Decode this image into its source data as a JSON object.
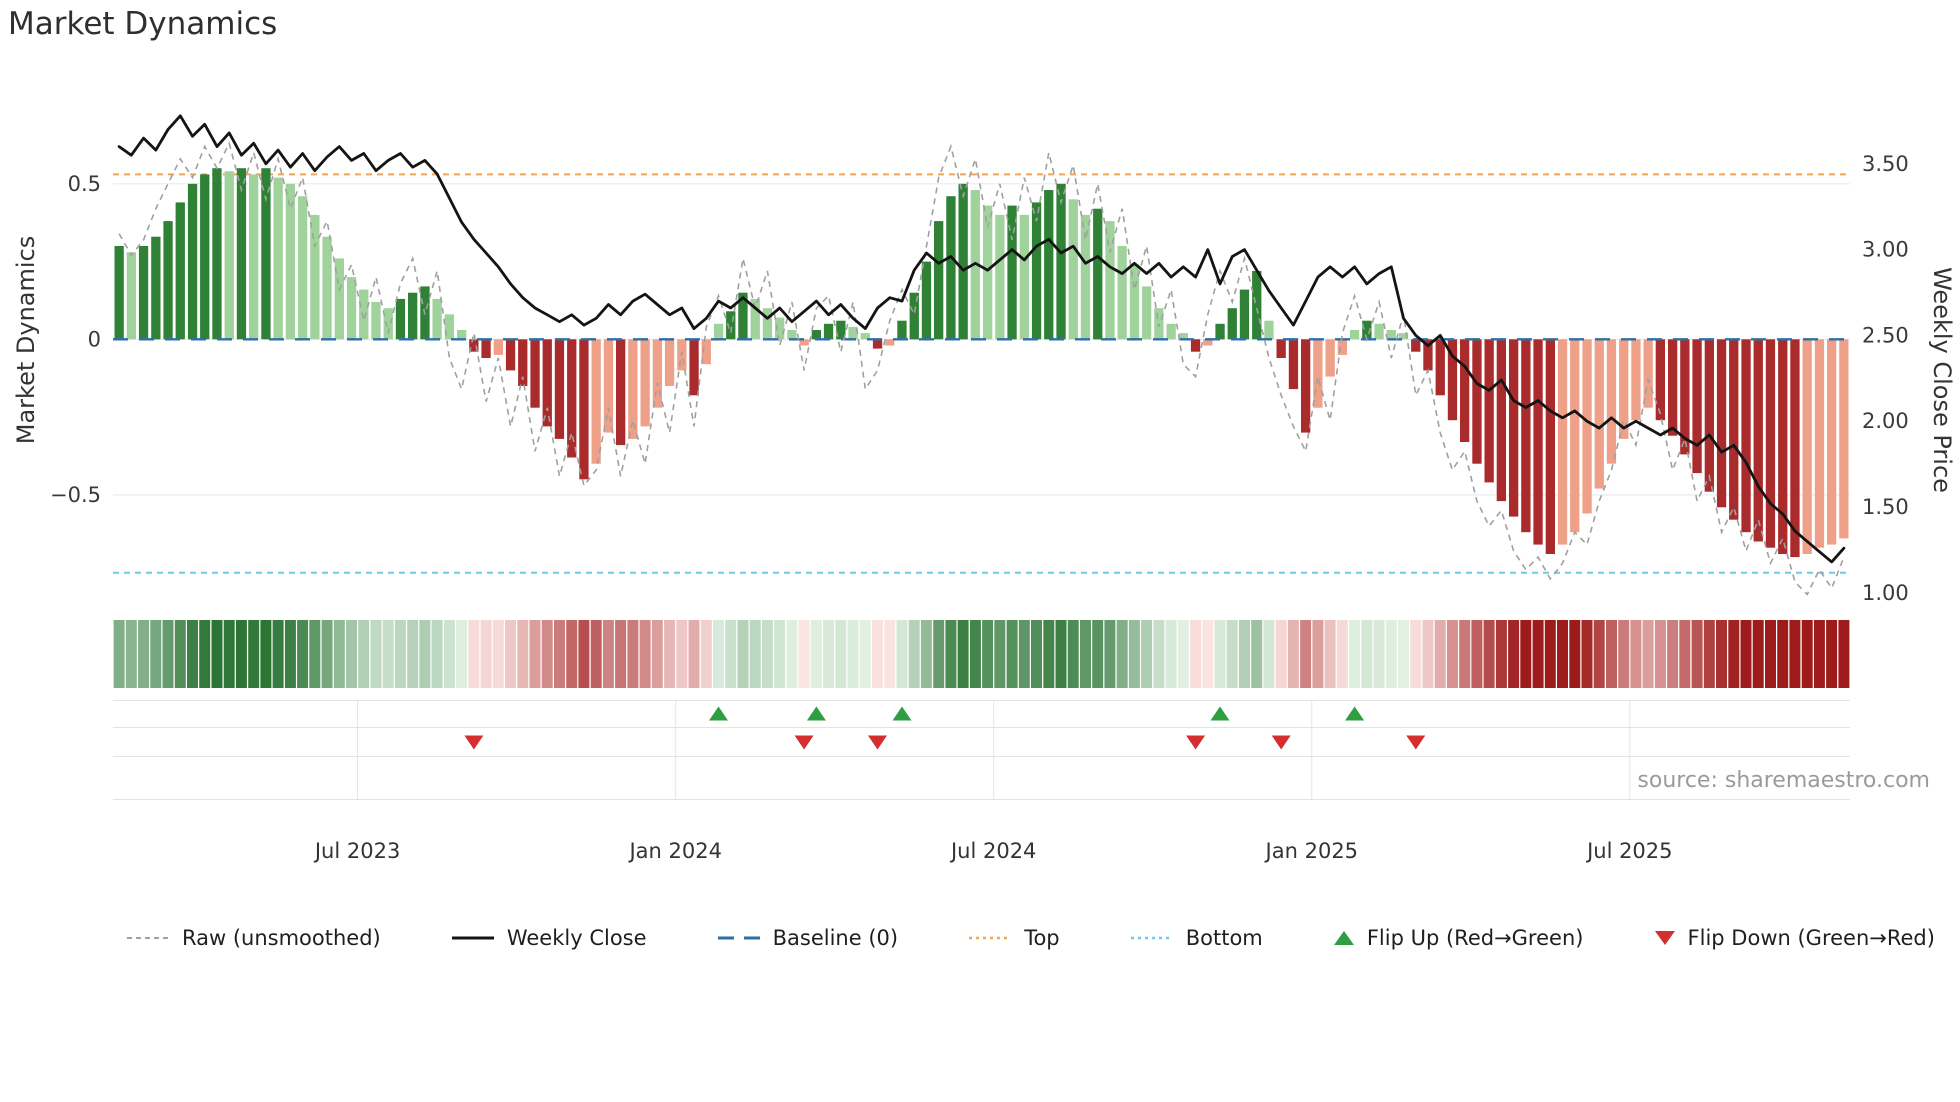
{
  "title": "Market Dynamics",
  "source_text": "source: sharemaestro.com",
  "axes": {
    "left_label": "Market Dynamics",
    "right_label": "Weekly Close Price",
    "left_ylim": [
      -0.87,
      0.84
    ],
    "right_ylim": [
      0.9,
      4.0
    ],
    "left_ticks": [
      {
        "value": 0.5,
        "label": "0.5"
      },
      {
        "value": 0.0,
        "label": "0"
      },
      {
        "value": -0.5,
        "label": "−0.5"
      }
    ],
    "right_ticks": [
      {
        "value": 3.5,
        "label": "3.50"
      },
      {
        "value": 3.0,
        "label": "3.00"
      },
      {
        "value": 2.5,
        "label": "2.50"
      },
      {
        "value": 2.0,
        "label": "2.00"
      },
      {
        "value": 1.5,
        "label": "1.50"
      },
      {
        "value": 1.0,
        "label": "1.00"
      }
    ],
    "x_ticks": [
      {
        "index": 20,
        "label": "Jul 2023"
      },
      {
        "index": 46,
        "label": "Jan 2024"
      },
      {
        "index": 72,
        "label": "Jul 2024"
      },
      {
        "index": 98,
        "label": "Jan 2025"
      },
      {
        "index": 124,
        "label": "Jul 2025"
      }
    ]
  },
  "colors": {
    "bar_green_dark": "#2e8135",
    "bar_green_light": "#a0d39b",
    "bar_red_dark": "#aa2b2b",
    "bar_red_light": "#efa088",
    "price_line": "#141414",
    "raw_line": "#a0a0a0",
    "baseline": "#2e6fa8",
    "top_line": "#f0a455",
    "bottom_line": "#6cc9e8",
    "flip_up": "#2f9e41",
    "flip_down": "#d32f2f",
    "grid": "#ebebeb",
    "band_grid": "#e4e4e4",
    "heat_green_dark": [
      27,
      105,
      37
    ],
    "heat_green_light": [
      232,
      245,
      233
    ],
    "heat_red_dark": [
      158,
      27,
      27
    ],
    "heat_red_light": [
      253,
      235,
      232
    ]
  },
  "legend": {
    "items": [
      {
        "label": "Raw (unsmoothed)",
        "icon": "dashed-line",
        "color": "#a0a0a0"
      },
      {
        "label": "Weekly Close",
        "icon": "solid-line",
        "color": "#141414"
      },
      {
        "label": "Baseline (0)",
        "icon": "long-dash-line",
        "color": "#2e6fa8"
      },
      {
        "label": "Top",
        "icon": "dotted-line",
        "color": "#f0a455"
      },
      {
        "label": "Bottom",
        "icon": "dotted-line",
        "color": "#6cc9e8"
      },
      {
        "label": "Flip Up (Red→Green)",
        "icon": "triangle-up",
        "color": "#2f9e41"
      },
      {
        "label": "Flip Down (Green→Red)",
        "icon": "triangle-down",
        "color": "#d32f2f"
      }
    ]
  },
  "chart_data": {
    "type": "combo",
    "x_unit": "week",
    "n_points": 142,
    "reference_lines": {
      "baseline": 0,
      "top": 0.53,
      "bottom": -0.75
    },
    "flip_up_indices": [
      49,
      57,
      64,
      90,
      101
    ],
    "flip_down_indices": [
      29,
      56,
      62,
      88,
      95,
      106
    ],
    "series": [
      {
        "name": "Market Dynamics Oscillator",
        "type": "bar",
        "axis": "left",
        "values": [
          0.3,
          0.28,
          0.3,
          0.33,
          0.38,
          0.44,
          0.5,
          0.53,
          0.55,
          0.54,
          0.55,
          0.53,
          0.55,
          0.52,
          0.5,
          0.46,
          0.4,
          0.33,
          0.26,
          0.2,
          0.16,
          0.12,
          0.1,
          0.13,
          0.15,
          0.17,
          0.13,
          0.08,
          0.03,
          -0.04,
          -0.06,
          -0.05,
          -0.1,
          -0.15,
          -0.22,
          -0.28,
          -0.32,
          -0.38,
          -0.45,
          -0.4,
          -0.3,
          -0.34,
          -0.32,
          -0.28,
          -0.22,
          -0.15,
          -0.1,
          -0.18,
          -0.08,
          0.05,
          0.09,
          0.15,
          0.13,
          0.1,
          0.07,
          0.03,
          -0.02,
          0.03,
          0.05,
          0.06,
          0.04,
          0.02,
          -0.03,
          -0.02,
          0.06,
          0.15,
          0.25,
          0.38,
          0.46,
          0.5,
          0.48,
          0.43,
          0.4,
          0.43,
          0.4,
          0.44,
          0.48,
          0.5,
          0.45,
          0.4,
          0.42,
          0.38,
          0.3,
          0.24,
          0.17,
          0.1,
          0.05,
          0.02,
          -0.04,
          -0.02,
          0.05,
          0.1,
          0.16,
          0.22,
          0.06,
          -0.06,
          -0.16,
          -0.3,
          -0.22,
          -0.12,
          -0.05,
          0.03,
          0.06,
          0.05,
          0.03,
          0.02,
          -0.04,
          -0.1,
          -0.18,
          -0.26,
          -0.33,
          -0.4,
          -0.46,
          -0.52,
          -0.57,
          -0.62,
          -0.66,
          -0.69,
          -0.66,
          -0.62,
          -0.56,
          -0.48,
          -0.4,
          -0.32,
          -0.26,
          -0.22,
          -0.26,
          -0.31,
          -0.37,
          -0.43,
          -0.49,
          -0.54,
          -0.58,
          -0.62,
          -0.65,
          -0.67,
          -0.69,
          -0.7,
          -0.69,
          -0.67,
          -0.66,
          -0.64
        ]
      },
      {
        "name": "Raw (unsmoothed)",
        "type": "line",
        "style": "dashed",
        "axis": "left",
        "values": [
          0.34,
          0.27,
          0.32,
          0.42,
          0.5,
          0.58,
          0.52,
          0.62,
          0.55,
          0.63,
          0.48,
          0.6,
          0.45,
          0.58,
          0.42,
          0.52,
          0.3,
          0.38,
          0.16,
          0.24,
          0.06,
          0.2,
          0.02,
          0.18,
          0.26,
          0.08,
          0.22,
          -0.06,
          -0.16,
          0.02,
          -0.2,
          -0.06,
          -0.28,
          -0.12,
          -0.36,
          -0.22,
          -0.44,
          -0.3,
          -0.47,
          -0.42,
          -0.22,
          -0.44,
          -0.26,
          -0.4,
          -0.14,
          -0.3,
          -0.04,
          -0.28,
          0.04,
          0.14,
          0.02,
          0.26,
          0.1,
          0.22,
          -0.02,
          0.12,
          -0.1,
          0.1,
          0.14,
          -0.04,
          0.12,
          -0.16,
          -0.1,
          0.06,
          0.16,
          0.08,
          0.3,
          0.52,
          0.62,
          0.46,
          0.58,
          0.36,
          0.5,
          0.32,
          0.52,
          0.38,
          0.6,
          0.44,
          0.56,
          0.32,
          0.5,
          0.28,
          0.42,
          0.16,
          0.3,
          0.04,
          0.16,
          -0.08,
          -0.12,
          0.08,
          0.22,
          0.12,
          0.26,
          0.1,
          -0.06,
          -0.18,
          -0.28,
          -0.36,
          -0.12,
          -0.26,
          0.02,
          0.14,
          0.0,
          0.12,
          -0.06,
          0.08,
          -0.18,
          -0.1,
          -0.3,
          -0.42,
          -0.36,
          -0.52,
          -0.6,
          -0.55,
          -0.68,
          -0.74,
          -0.7,
          -0.77,
          -0.72,
          -0.62,
          -0.66,
          -0.52,
          -0.42,
          -0.26,
          -0.34,
          -0.13,
          -0.24,
          -0.42,
          -0.32,
          -0.52,
          -0.44,
          -0.62,
          -0.54,
          -0.68,
          -0.58,
          -0.72,
          -0.64,
          -0.78,
          -0.82,
          -0.74,
          -0.8,
          -0.7
        ]
      },
      {
        "name": "Weekly Close",
        "type": "line",
        "axis": "right",
        "values": [
          3.6,
          3.55,
          3.65,
          3.58,
          3.7,
          3.78,
          3.66,
          3.73,
          3.6,
          3.68,
          3.55,
          3.62,
          3.5,
          3.58,
          3.48,
          3.56,
          3.46,
          3.54,
          3.6,
          3.52,
          3.56,
          3.46,
          3.52,
          3.56,
          3.48,
          3.52,
          3.44,
          3.3,
          3.16,
          3.06,
          2.98,
          2.9,
          2.8,
          2.72,
          2.66,
          2.62,
          2.58,
          2.62,
          2.56,
          2.6,
          2.68,
          2.62,
          2.7,
          2.74,
          2.68,
          2.62,
          2.66,
          2.54,
          2.6,
          2.7,
          2.66,
          2.72,
          2.66,
          2.6,
          2.66,
          2.58,
          2.64,
          2.7,
          2.62,
          2.68,
          2.6,
          2.54,
          2.66,
          2.72,
          2.7,
          2.88,
          2.98,
          2.92,
          2.96,
          2.88,
          2.92,
          2.88,
          2.94,
          3.0,
          2.94,
          3.02,
          3.06,
          2.98,
          3.02,
          2.92,
          2.96,
          2.9,
          2.86,
          2.92,
          2.86,
          2.92,
          2.84,
          2.9,
          2.84,
          3.0,
          2.8,
          2.96,
          3.0,
          2.88,
          2.76,
          2.66,
          2.56,
          2.7,
          2.84,
          2.9,
          2.84,
          2.9,
          2.8,
          2.86,
          2.9,
          2.6,
          2.5,
          2.44,
          2.5,
          2.38,
          2.32,
          2.22,
          2.18,
          2.24,
          2.12,
          2.08,
          2.12,
          2.06,
          2.02,
          2.06,
          2.0,
          1.96,
          2.02,
          1.96,
          2.0,
          1.96,
          1.92,
          1.96,
          1.9,
          1.86,
          1.92,
          1.82,
          1.86,
          1.76,
          1.62,
          1.52,
          1.46,
          1.36,
          1.3,
          1.24,
          1.18,
          1.26
        ]
      }
    ]
  }
}
